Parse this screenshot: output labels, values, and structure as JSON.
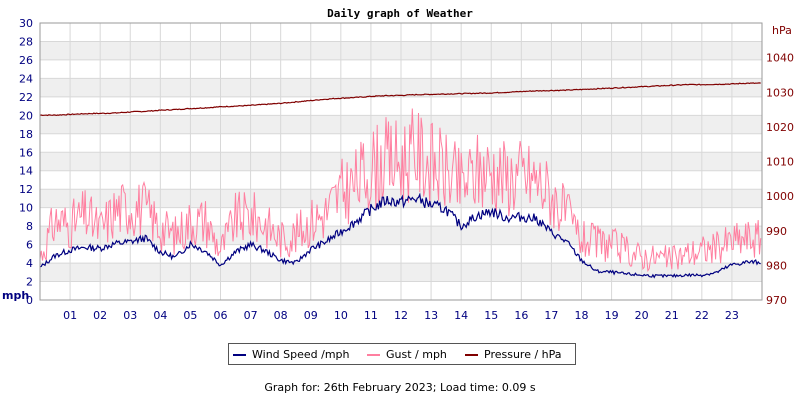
{
  "chart_data": {
    "type": "line",
    "title": "Daily graph of Weather",
    "y_left_label": "mph",
    "y_right_label": "hPa",
    "y_left_ticks": [
      0,
      2,
      4,
      6,
      8,
      10,
      12,
      14,
      16,
      18,
      20,
      22,
      24,
      26,
      28,
      30
    ],
    "y_left_range": [
      0,
      30
    ],
    "y_right_ticks": [
      970,
      980,
      990,
      1000,
      1010,
      1020,
      1030,
      1040
    ],
    "y_right_range": [
      970,
      1050
    ],
    "x_tick_labels": [
      "01",
      "02",
      "03",
      "04",
      "05",
      "06",
      "07",
      "08",
      "09",
      "10",
      "11",
      "12",
      "13",
      "14",
      "15",
      "16",
      "17",
      "18",
      "19",
      "20",
      "21",
      "22",
      "23"
    ],
    "x_range": [
      0,
      24
    ],
    "grid": true,
    "legend_position": "bottom-center",
    "x": [
      0,
      0.5,
      1,
      1.5,
      2,
      2.5,
      3,
      3.5,
      4,
      4.5,
      5,
      5.5,
      6,
      6.5,
      7,
      7.5,
      8,
      8.5,
      9,
      9.5,
      10,
      10.5,
      11,
      11.5,
      12,
      12.5,
      13,
      13.5,
      14,
      14.5,
      15,
      15.5,
      16,
      16.5,
      17,
      17.5,
      18,
      18.5,
      19,
      19.5,
      20,
      20.5,
      21,
      21.5,
      22,
      22.5,
      23,
      23.5
    ],
    "series": [
      {
        "name": "Wind Speed /mph",
        "color": "#000080",
        "axis": "left",
        "values": [
          3.5,
          4.8,
          5.4,
          5.7,
          5.6,
          6.1,
          6.3,
          6.7,
          5.2,
          4.6,
          6.1,
          5.3,
          3.8,
          5.2,
          6.0,
          5.3,
          4.3,
          4.0,
          5.5,
          6.3,
          7.4,
          8.5,
          9.8,
          10.8,
          10.6,
          11.0,
          10.3,
          9.8,
          8.0,
          9.1,
          9.6,
          8.9,
          9.0,
          8.8,
          7.3,
          6.3,
          4.3,
          3.1,
          3.0,
          2.8,
          2.7,
          2.6,
          2.6,
          2.7,
          2.7,
          3.0,
          3.8,
          4.1
        ]
      },
      {
        "name": "Gust / mph",
        "color": "#ff7fa0",
        "axis": "left",
        "values": [
          4.6,
          8.6,
          8.1,
          9.2,
          7.6,
          9.7,
          10.2,
          9.8,
          7.8,
          7.0,
          8.5,
          8.6,
          5.4,
          8.8,
          9.1,
          8.2,
          6.6,
          7.0,
          8.5,
          9.4,
          11.6,
          12.6,
          14.4,
          15.0,
          15.0,
          16.0,
          14.8,
          13.8,
          12.4,
          13.8,
          14.1,
          13.3,
          13.5,
          13.0,
          11.4,
          9.1,
          6.5,
          6.2,
          6.0,
          5.3,
          4.7,
          4.6,
          4.4,
          5.0,
          5.4,
          5.7,
          6.4,
          6.7
        ]
      },
      {
        "name": "Pressure / hPa",
        "color": "#800000",
        "axis": "right",
        "values": [
          1023.4,
          1023.4,
          1023.6,
          1023.8,
          1023.9,
          1024.0,
          1024.3,
          1024.5,
          1024.8,
          1025.0,
          1025.3,
          1025.5,
          1025.8,
          1026.0,
          1026.2,
          1026.5,
          1026.8,
          1027.2,
          1027.6,
          1028.0,
          1028.3,
          1028.5,
          1028.8,
          1029.0,
          1029.1,
          1029.3,
          1029.4,
          1029.5,
          1029.6,
          1029.7,
          1029.8,
          1030.0,
          1030.2,
          1030.4,
          1030.5,
          1030.6,
          1030.8,
          1031.0,
          1031.2,
          1031.4,
          1031.6,
          1031.8,
          1032.0,
          1032.2,
          1032.2,
          1032.3,
          1032.4,
          1032.6
        ]
      }
    ]
  },
  "legend": {
    "wind_label": "Wind Speed /mph",
    "gust_label": "Gust / mph",
    "pressure_label": "Pressure / hPa"
  },
  "footer": {
    "text": "Graph for: 26th February 2023; Load time: 0.09 s"
  }
}
